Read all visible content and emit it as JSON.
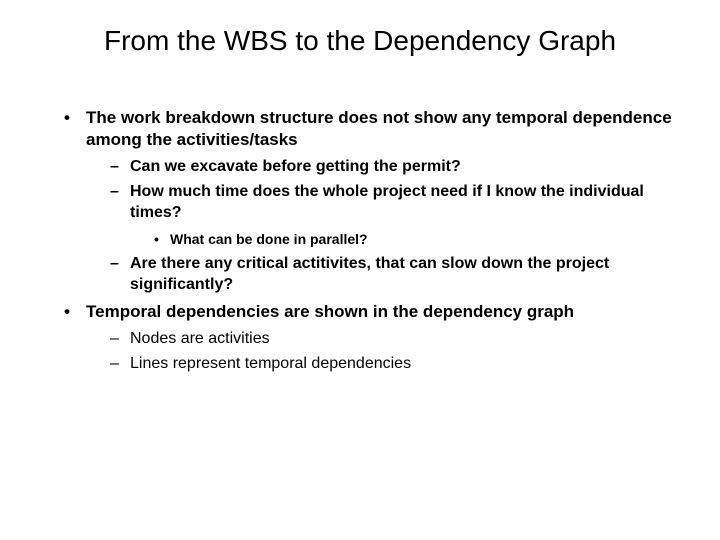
{
  "title": "From the WBS to the Dependency Graph",
  "bullets": [
    {
      "text": "The work breakdown structure does not show any temporal dependence among the activities/tasks",
      "children": [
        {
          "text": "Can we excavate before getting the permit?",
          "bold": true
        },
        {
          "text": "How much time does the whole project need if I know the individual times?",
          "bold": true,
          "children": [
            {
              "text": "What can be done in parallel?"
            }
          ]
        },
        {
          "text": "Are there any critical actitivites, that can slow down the project significantly?",
          "bold": true
        }
      ]
    },
    {
      "text": "Temporal dependencies are shown in the dependency graph",
      "children": [
        {
          "text": "Nodes are activities",
          "bold": false
        },
        {
          "text": "Lines represent temporal  dependencies",
          "bold": false
        }
      ]
    }
  ],
  "style": {
    "background": "#ffffff",
    "text_color": "#000000",
    "title_fontsize": 28,
    "lvl1_fontsize": 17,
    "lvl2_fontsize": 16,
    "lvl3_fontsize": 14,
    "font_family": "Arial"
  }
}
